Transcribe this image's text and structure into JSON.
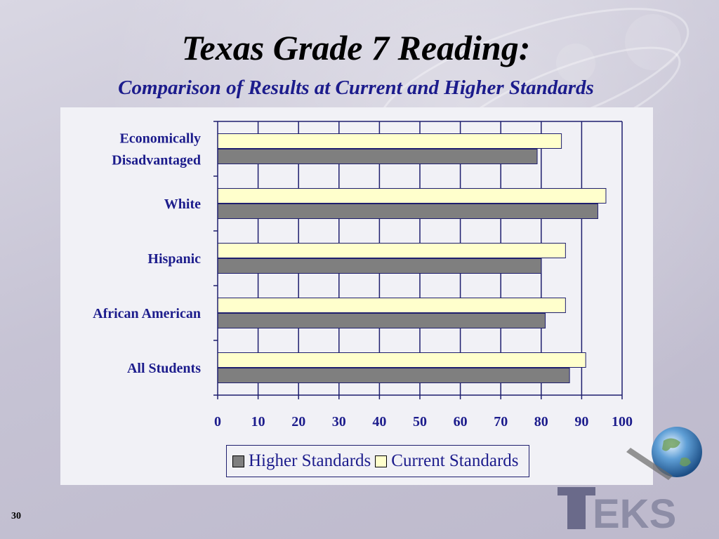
{
  "slide": {
    "title": "Texas Grade 7 Reading:",
    "subtitle": "Comparison of Results at Current and Higher Standards",
    "slide_number": "30",
    "logo_text": "EKS",
    "colors": {
      "title": "#000000",
      "subtitle": "#1c1c8c",
      "higher_bar": "#7f7f7f",
      "current_bar": "#ffffcc",
      "axis_label": "#1c1c8c"
    }
  },
  "chart_data": {
    "type": "bar",
    "orientation": "horizontal",
    "categories": [
      "Economically Disadvantaged",
      "White",
      "Hispanic",
      "African American",
      "All Students"
    ],
    "category_lines": [
      [
        "Economically",
        "Disadvantaged"
      ],
      [
        "White"
      ],
      [
        "Hispanic"
      ],
      [
        "African American"
      ],
      [
        "All Students"
      ]
    ],
    "series": [
      {
        "name": "Higher Standards",
        "color": "#7f7f7f",
        "values": [
          79,
          94,
          80,
          81,
          87
        ]
      },
      {
        "name": "Current Standards",
        "color": "#ffffcc",
        "values": [
          85,
          96,
          86,
          86,
          91
        ]
      }
    ],
    "xlim": [
      0,
      100
    ],
    "xticks": [
      0,
      10,
      20,
      30,
      40,
      50,
      60,
      70,
      80,
      90,
      100
    ],
    "grid": true,
    "legend": "bottom"
  }
}
